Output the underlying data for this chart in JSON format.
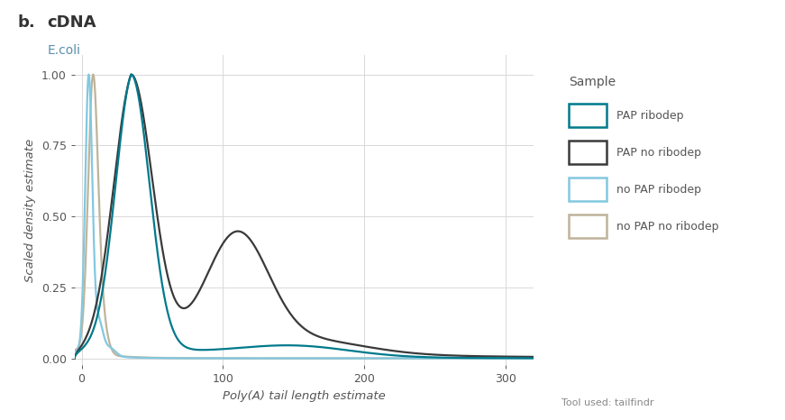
{
  "title_letter": "b.",
  "title_main": "cDNA",
  "subtitle": "E.coli",
  "xlabel": "Poly(A) tail length estimate",
  "ylabel": "Scaled density estimate",
  "footer": "Tool used: tailfindr",
  "xlim": [
    -5,
    320
  ],
  "ylim": [
    -0.025,
    1.07
  ],
  "xticks": [
    0,
    100,
    200,
    300
  ],
  "yticks": [
    0.0,
    0.25,
    0.5,
    0.75,
    1.0
  ],
  "legend_title": "Sample",
  "legend_labels": [
    "PAP ribodep",
    "PAP no ribodep",
    "no PAP ribodep",
    "no PAP no ribodep"
  ],
  "colors": {
    "PAP ribodep": "#007A8C",
    "PAP no ribodep": "#3A3A3A",
    "no PAP ribodep": "#82C8E0",
    "no PAP no ribodep": "#BFB49A"
  },
  "background_color": "#FFFFFF",
  "grid_color": "#D8D8D8",
  "text_color": "#555555",
  "title_color": "#333333",
  "subtitle_color": "#5B8FAB"
}
